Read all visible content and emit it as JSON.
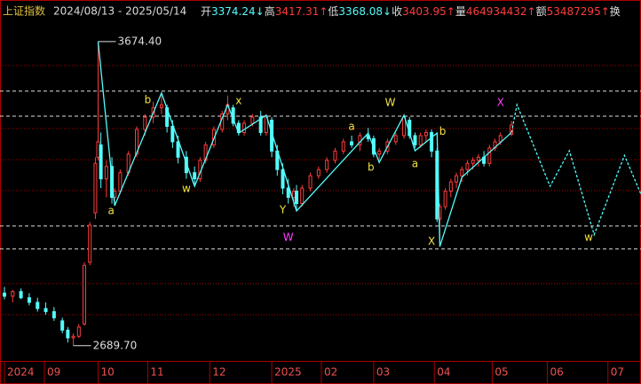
{
  "chart_data": {
    "type": "candlestick",
    "title": "上证指数",
    "date_range": "2024/08/13 - 2025/05/14",
    "stats": [
      {
        "label": "开",
        "value": 3374.24,
        "arrow": "↓"
      },
      {
        "label": "高",
        "value": 3417.31,
        "arrow": "↑"
      },
      {
        "label": "低",
        "value": 3368.08,
        "arrow": "↓"
      },
      {
        "label": "收",
        "value": 3403.95,
        "arrow": "↑"
      },
      {
        "label": "量",
        "value": 464934432,
        "arrow": "↑"
      },
      {
        "label": "额",
        "value": 53487295,
        "arrow": "↑"
      },
      {
        "label": "换"
      }
    ],
    "xlim": [
      0,
      231
    ],
    "ylim": [
      2646,
      3746
    ],
    "xticks": [
      {
        "value": 0,
        "label": "2024"
      },
      {
        "value": 14.5,
        "label": "09"
      },
      {
        "value": 34,
        "label": "10"
      },
      {
        "value": 52,
        "label": "11"
      },
      {
        "value": 74.5,
        "label": "12"
      },
      {
        "value": 97,
        "label": "2025"
      },
      {
        "value": 115,
        "label": "02"
      },
      {
        "value": 134,
        "label": "03"
      },
      {
        "value": 156,
        "label": "04"
      },
      {
        "value": 177,
        "label": "05"
      },
      {
        "value": 197,
        "label": "06"
      },
      {
        "value": 219,
        "label": "07"
      }
    ],
    "up_color": "#ff3c3c",
    "down_color": "#54fcfc",
    "x": [
      0,
      3,
      6,
      9,
      12,
      15,
      18,
      21,
      23,
      25,
      27,
      29,
      31,
      33,
      34,
      35,
      37,
      39,
      40,
      42,
      45,
      48,
      51,
      54,
      57,
      59,
      61,
      63,
      66,
      69,
      71,
      73,
      76,
      79,
      81,
      83,
      85,
      87,
      90,
      93,
      95,
      97,
      99,
      101,
      103,
      105,
      106,
      108,
      111,
      114,
      117,
      120,
      123,
      126,
      129,
      132,
      134,
      136,
      139,
      142,
      145,
      147,
      149,
      151,
      153,
      155,
      157,
      158,
      160,
      162,
      164,
      166,
      168,
      170,
      172,
      174,
      176,
      178,
      180,
      184
    ],
    "open": [
      2860,
      2850,
      2865,
      2845,
      2830,
      2810,
      2800,
      2770,
      2740,
      2715,
      2720,
      2760,
      2960,
      3120,
      3300,
      3340,
      3230,
      3270,
      3170,
      3190,
      3250,
      3310,
      3390,
      3430,
      3460,
      3460,
      3400,
      3350,
      3300,
      3250,
      3230,
      3290,
      3340,
      3390,
      3440,
      3460,
      3410,
      3380,
      3410,
      3430,
      3380,
      3420,
      3320,
      3260,
      3200,
      3170,
      3190,
      3150,
      3200,
      3240,
      3260,
      3290,
      3320,
      3350,
      3340,
      3370,
      3360,
      3310,
      3320,
      3350,
      3370,
      3420,
      3370,
      3340,
      3370,
      3380,
      3320,
      3100,
      3140,
      3190,
      3220,
      3240,
      3260,
      3280,
      3290,
      3300,
      3280,
      3330,
      3350,
      3374.24
    ],
    "high": [
      2880,
      2870,
      2875,
      2860,
      2845,
      2830,
      2815,
      2780,
      2750,
      2730,
      2760,
      2960,
      3090,
      3300,
      3674.4,
      3380,
      3290,
      3300,
      3200,
      3260,
      3320,
      3400,
      3440,
      3480,
      3508,
      3470,
      3420,
      3370,
      3320,
      3270,
      3300,
      3350,
      3400,
      3450,
      3500,
      3470,
      3420,
      3420,
      3440,
      3450,
      3440,
      3430,
      3340,
      3280,
      3230,
      3200,
      3210,
      3210,
      3250,
      3270,
      3300,
      3330,
      3360,
      3370,
      3380,
      3395,
      3370,
      3330,
      3360,
      3380,
      3440,
      3430,
      3380,
      3380,
      3390,
      3390,
      3330,
      3150,
      3200,
      3230,
      3250,
      3270,
      3290,
      3300,
      3310,
      3320,
      3340,
      3360,
      3380,
      3417.31
    ],
    "low": [
      2840,
      2830,
      2840,
      2820,
      2800,
      2790,
      2770,
      2730,
      2700,
      2689.7,
      2715,
      2755,
      2950,
      3100,
      3290,
      3200,
      3170,
      3150,
      3143,
      3180,
      3240,
      3300,
      3370,
      3410,
      3440,
      3380,
      3330,
      3280,
      3230,
      3206,
      3220,
      3280,
      3330,
      3380,
      3420,
      3400,
      3370,
      3370,
      3400,
      3370,
      3370,
      3300,
      3240,
      3180,
      3150,
      3140,
      3126,
      3140,
      3190,
      3230,
      3250,
      3280,
      3310,
      3330,
      3320,
      3350,
      3300,
      3290,
      3310,
      3340,
      3360,
      3360,
      3330,
      3330,
      3350,
      3300,
      3090,
      3011,
      3130,
      3170,
      3200,
      3220,
      3240,
      3260,
      3270,
      3270,
      3270,
      3320,
      3340,
      3368.08
    ],
    "close": [
      2850,
      2865,
      2845,
      2830,
      2810,
      2800,
      2780,
      2740,
      2715,
      2720,
      2750,
      2950,
      3080,
      3280,
      3350,
      3230,
      3270,
      3170,
      3190,
      3250,
      3310,
      3390,
      3430,
      3460,
      3470,
      3400,
      3350,
      3300,
      3250,
      3230,
      3290,
      3340,
      3390,
      3440,
      3470,
      3410,
      3380,
      3410,
      3430,
      3380,
      3430,
      3320,
      3260,
      3200,
      3170,
      3190,
      3150,
      3200,
      3240,
      3260,
      3290,
      3320,
      3350,
      3340,
      3370,
      3360,
      3310,
      3320,
      3350,
      3370,
      3430,
      3370,
      3340,
      3370,
      3380,
      3320,
      3100,
      3140,
      3190,
      3220,
      3240,
      3260,
      3280,
      3290,
      3300,
      3280,
      3330,
      3350,
      3370,
      3403.95
    ],
    "high_annotation": {
      "x": 34,
      "value": 3674.4,
      "label": "3674.40"
    },
    "low_annotation": {
      "x": 25,
      "value": 2689.7,
      "label": "2689.70"
    },
    "wave_line": {
      "x": [
        34,
        40,
        57,
        69,
        81,
        85,
        95,
        106,
        132,
        136,
        145,
        149,
        157,
        158,
        166,
        184
      ],
      "y": [
        3674.4,
        3143,
        3508,
        3206,
        3470,
        3378,
        3436,
        3126,
        3378,
        3283,
        3436,
        3321,
        3378,
        3011,
        3235,
        3380
      ],
      "color": "#54fcfc"
    },
    "projection": {
      "x": [
        184,
        186,
        198,
        205,
        214,
        225,
        231
      ],
      "y": [
        3380,
        3470,
        3206,
        3321,
        3049,
        3306,
        3180
      ],
      "color": "#54fcfc"
    },
    "levels": [
      3514,
      3433,
      3077,
      3003
    ],
    "grid_levels": [
      3597,
      3393,
      3292,
      3192,
      2891,
      2790
    ],
    "wave_labels": [
      {
        "x": 38.7,
        "y": 3126,
        "text": "a"
      },
      {
        "x": 52,
        "y": 3485,
        "text": "b"
      },
      {
        "x": 66,
        "y": 3198,
        "text": "w"
      },
      {
        "x": 85,
        "y": 3482,
        "text": "x"
      },
      {
        "x": 101,
        "y": 3129,
        "text": "Y"
      },
      {
        "x": 126,
        "y": 3399,
        "text": "a"
      },
      {
        "x": 140,
        "y": 3476,
        "text": "W"
      },
      {
        "x": 133,
        "y": 3267,
        "text": "b"
      },
      {
        "x": 149,
        "y": 3278,
        "text": "a"
      },
      {
        "x": 159,
        "y": 3382,
        "text": "b"
      },
      {
        "x": 155,
        "y": 3026,
        "text": "X"
      },
      {
        "x": 212,
        "y": 3040,
        "text": "w"
      }
    ],
    "degree_labels": [
      {
        "x": 103,
        "y": 3040,
        "text": "W"
      },
      {
        "x": 180,
        "y": 3476,
        "text": "X"
      }
    ]
  }
}
